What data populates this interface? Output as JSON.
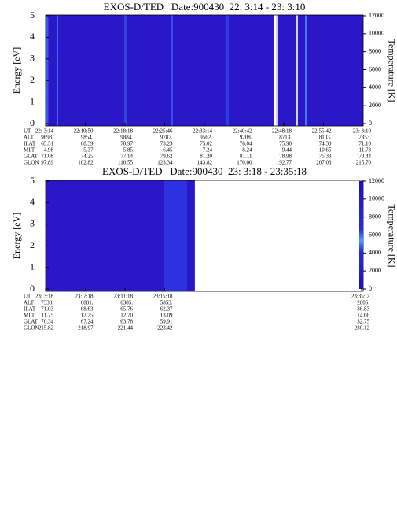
{
  "chart_data": [
    {
      "type": "spectrogram",
      "title": "EXOS-D/TED   Date:900430  22: 3:14 - 23: 3:10",
      "ylabel": "Energy [eV]",
      "y2label": "Temperature [K]",
      "ylim": [
        0,
        5
      ],
      "yticks": [
        0,
        1,
        2,
        3,
        4,
        5
      ],
      "y2lim": [
        0,
        12000
      ],
      "y2ticks": [
        0,
        2000,
        4000,
        6000,
        8000,
        10000,
        12000
      ],
      "ephemeris": {
        "labels": [
          "UT",
          "ALT",
          "ILAT",
          "MLT",
          "GLAT",
          "GLON"
        ],
        "rows": [
          [
            "22: 3:14",
            "22:10:50",
            "22:18:18",
            "22:25:46",
            "22:33:14",
            "22:40:42",
            "22:48:18",
            "22:55:42",
            "23: 3:10"
          ],
          [
            "9693.",
            "9854.",
            "9884.",
            "9787.",
            "9562.",
            "9208.",
            "8713.",
            "8103.",
            "7353."
          ],
          [
            "65.51",
            "68.39",
            "70.97",
            "73.23",
            "75.02",
            "76.04",
            "75.90",
            "74.30",
            "71.10"
          ],
          [
            "4.98",
            "5.37",
            "5.85",
            "6.45",
            "7.24",
            "8.24",
            "9.44",
            "10.65",
            "11.73"
          ],
          [
            "71.08",
            "74.25",
            "77.14",
            "79.62",
            "81.20",
            "81.11",
            "78.98",
            "75.33",
            "70.44"
          ],
          [
            "97.89",
            "102.82",
            "110.55",
            "123.34",
            "143.82",
            "170.00",
            "192.77",
            "207.03",
            "215.70"
          ]
        ]
      }
    },
    {
      "type": "spectrogram",
      "title": "EXOS-D/TED   Date:900430  23: 3:18 - 23:35:18",
      "ylabel": "Energy [eV]",
      "y2label": "Temperature [K]",
      "ylim": [
        0,
        5
      ],
      "yticks": [
        0,
        1,
        2,
        3,
        4,
        5
      ],
      "y2lim": [
        0,
        12000
      ],
      "y2ticks": [
        0,
        2000,
        4000,
        6000,
        8000,
        10000,
        12000
      ],
      "ephemeris": {
        "labels": [
          "UT",
          "ALT",
          "ILAT",
          "MLT",
          "GLAT",
          "GLON"
        ],
        "rows": [
          [
            "23: 3:18",
            "23: 7:18",
            "23:11:18",
            "23:15:18",
            "23:35: 2"
          ],
          [
            "7338.",
            "6881.",
            "6385.",
            "5853.",
            "2805."
          ],
          [
            "71.03",
            "68.63",
            "65.76",
            "62.37",
            "36.83"
          ],
          [
            "11.75",
            "12.25",
            "12.70",
            "13.09",
            "14.66"
          ],
          [
            "70.34",
            "67.24",
            "63.78",
            "59.91",
            "32.75"
          ],
          [
            "215.82",
            "218.97",
            "221.44",
            "223.42",
            "230.12"
          ]
        ]
      }
    }
  ]
}
